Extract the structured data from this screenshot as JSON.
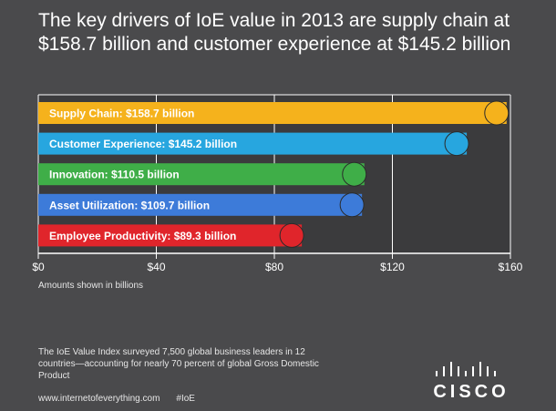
{
  "title": "The key drivers of IoE value in 2013 are supply chain at $158.7 billion and customer experience at $145.2 billion",
  "chart_data": {
    "type": "bar",
    "orientation": "horizontal",
    "categories": [
      "Supply Chain",
      "Customer Experience",
      "Innovation",
      "Asset Utilization",
      "Employee Productivity"
    ],
    "values": [
      158.7,
      145.2,
      110.5,
      109.7,
      89.3
    ],
    "data_labels": [
      "Supply Chain: $158.7 billion",
      "Customer Experience: $145.2 billion",
      "Innovation: $110.5 billion",
      "Asset Utilization: $109.7 billion",
      "Employee Productivity: $89.3 billion"
    ],
    "colors": [
      "#f5b21c",
      "#27a6df",
      "#3fae48",
      "#3d7bd9",
      "#e0252b"
    ],
    "ticks": [
      0,
      40,
      80,
      120,
      160
    ],
    "tick_labels": [
      "$0",
      "$40",
      "$80",
      "$120",
      "$160"
    ],
    "xlim": [
      0,
      160
    ],
    "grid": true,
    "xlabel": "",
    "ylabel": ""
  },
  "axis_note": "Amounts shown in billions",
  "footnote": "The IoE Value Index surveyed 7,500 global business leaders in 12 countries—accounting for nearly 70 percent of global Gross Domestic Product",
  "footer": {
    "url": "www.internetofeverything.com",
    "hashtag": "#IoE"
  },
  "logo": {
    "text": "CISCO",
    "icon": "cisco-bridge-icon"
  },
  "colors": {
    "background": "#4a4a4c",
    "plot_background": "#3b3b3d",
    "grid": "#ffffff"
  }
}
